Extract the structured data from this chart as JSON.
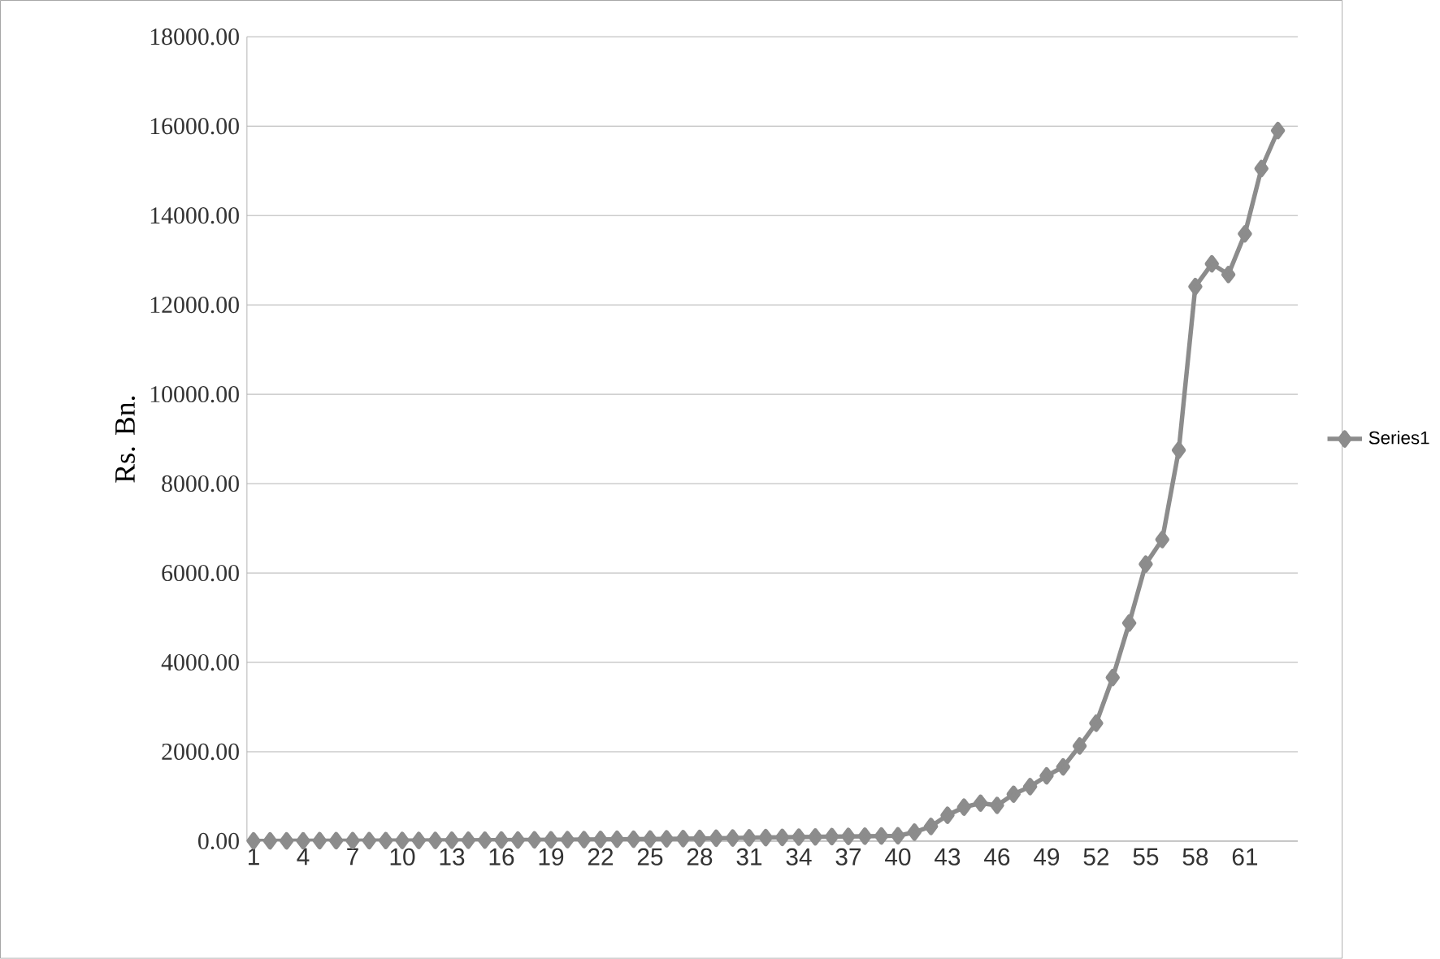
{
  "chart_data": {
    "type": "line",
    "ylabel": "Rs. Bn.",
    "categories": [
      "1",
      null,
      null,
      "4",
      null,
      null,
      "7",
      null,
      null,
      "10",
      null,
      null,
      "13",
      null,
      null,
      "16",
      null,
      null,
      "19",
      null,
      null,
      "22",
      null,
      null,
      "25",
      null,
      null,
      "28",
      null,
      null,
      "31",
      null,
      null,
      "34",
      null,
      null,
      "37",
      null,
      null,
      "40",
      null,
      null,
      "43",
      null,
      null,
      "46",
      null,
      null,
      "49",
      null,
      null,
      "52",
      null,
      null,
      "55",
      null,
      null,
      "58",
      null,
      null,
      "61",
      null,
      null
    ],
    "series": [
      {
        "name": "Series1",
        "color": "#8c8c8c",
        "values": [
          5,
          6,
          7,
          8,
          9,
          10,
          11,
          12,
          13,
          14,
          15,
          16,
          18,
          20,
          22,
          24,
          26,
          28,
          30,
          32,
          35,
          38,
          41,
          44,
          47,
          50,
          55,
          60,
          65,
          70,
          75,
          80,
          85,
          90,
          95,
          100,
          105,
          110,
          115,
          120,
          200,
          330,
          580,
          760,
          850,
          800,
          1050,
          1220,
          1460,
          1660,
          2130,
          2640,
          3660,
          4880,
          6200,
          6750,
          8750,
          12410,
          12920,
          12680,
          13590,
          15050,
          15900
        ]
      }
    ],
    "ylim": [
      0,
      18000
    ],
    "yticks": [
      {
        "value": 0,
        "label": "0.00"
      },
      {
        "value": 2000,
        "label": "2000.00"
      },
      {
        "value": 4000,
        "label": "4000.00"
      },
      {
        "value": 6000,
        "label": "6000.00"
      },
      {
        "value": 8000,
        "label": "8000.00"
      },
      {
        "value": 10000,
        "label": "10000.00"
      },
      {
        "value": 12000,
        "label": "12000.00"
      },
      {
        "value": 14000,
        "label": "14000.00"
      },
      {
        "value": 16000,
        "label": "16000.00"
      },
      {
        "value": 18000,
        "label": "18000.00"
      }
    ],
    "grid": "y",
    "legend": "right",
    "marker": "diamond",
    "line_style": "solid"
  }
}
